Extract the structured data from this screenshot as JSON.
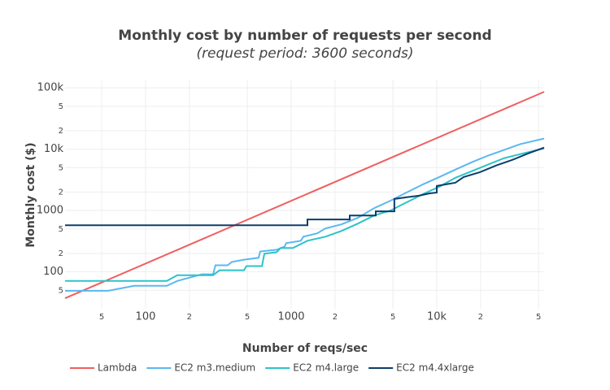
{
  "chart_data": {
    "type": "line",
    "title": "Monthly cost by number of requests per second",
    "subtitle": "(request period: 3600 seconds)",
    "x_label": "Number of reqs/sec",
    "y_label": "Monthly cost ($)",
    "log_x": true,
    "log_y": true,
    "grid": true,
    "legend": "bottom",
    "xlim": [
      28,
      54600
    ],
    "ylim": [
      25,
      136000
    ],
    "xticks": [
      {
        "value": 50,
        "label": "5"
      },
      100,
      {
        "value": 200,
        "label": "2"
      },
      {
        "value": 500,
        "label": "5"
      },
      1000,
      {
        "value": 2000,
        "label": "2"
      },
      {
        "value": 5000,
        "label": "5"
      },
      {
        "value": 10000,
        "label": "10k"
      },
      {
        "value": 20000,
        "label": "2"
      },
      {
        "value": 50000,
        "label": "5"
      }
    ],
    "yticks": [
      {
        "value": 50,
        "label": "5"
      },
      100,
      {
        "value": 200,
        "label": "2"
      },
      {
        "value": 500,
        "label": "5"
      },
      1000,
      {
        "value": 2000,
        "label": "2"
      },
      {
        "value": 5000,
        "label": "5"
      },
      {
        "value": 10000,
        "label": "10k"
      },
      {
        "value": 20000,
        "label": "2"
      },
      {
        "value": 50000,
        "label": "5"
      },
      {
        "value": 100000,
        "label": "100k"
      }
    ],
    "series": [
      {
        "name": "Lambda",
        "color": "#ef5f5f",
        "x": [
          28,
          54600
        ],
        "values": [
          37,
          86000
        ]
      },
      {
        "name": "EC2 m3.medium",
        "color": "#5ab8f0",
        "x": [
          28,
          55.4,
          83.5,
          140,
          165,
          243,
          291,
          302,
          366,
          391,
          474,
          598,
          613,
          793,
          902,
          925,
          1166,
          1213,
          1510,
          1718,
          2220,
          2870,
          3715,
          4808,
          6212,
          8035,
          10400,
          13430,
          17380,
          22480,
          29100,
          37600,
          54600
        ],
        "values": [
          49,
          49,
          59,
          59,
          71,
          91,
          91,
          128,
          128,
          145,
          158,
          169,
          215,
          229,
          259,
          293,
          321,
          374,
          424,
          509,
          594,
          758,
          1091,
          1445,
          1963,
          2667,
          3513,
          4642,
          6109,
          7847,
          9750,
          12100,
          14900
        ]
      },
      {
        "name": "EC2 m4.large",
        "color": "#2cc3c8",
        "x": [
          28,
          140,
          165,
          291,
          322,
          474,
          493,
          630,
          654,
          793,
          846,
          1026,
          1293,
          1718,
          2220,
          2870,
          3715,
          4808,
          6212,
          8035,
          10400,
          13430,
          17380,
          22480,
          29100,
          37600,
          54600
        ],
        "values": [
          71,
          71,
          88,
          88,
          106,
          106,
          124,
          124,
          197,
          209,
          244,
          244,
          321,
          374,
          464,
          611,
          830,
          1000,
          1360,
          1850,
          2440,
          3410,
          4370,
          5590,
          7150,
          8330,
          10300
        ]
      },
      {
        "name": "EC2 m4.4xlarge",
        "color": "#0d3d6b",
        "x": [
          28,
          1293,
          1293,
          2523,
          2523,
          3810,
          3810,
          5118,
          5118,
          6212,
          7530,
          8910,
          10000,
          10000,
          13430,
          15280,
          19770,
          25580,
          33100,
          42800,
          54600
        ],
        "values": [
          575,
          575,
          715,
          715,
          830,
          830,
          970,
          970,
          1540,
          1640,
          1740,
          1900,
          1960,
          2510,
          2840,
          3510,
          4220,
          5410,
          6700,
          8580,
          10600
        ]
      }
    ]
  }
}
